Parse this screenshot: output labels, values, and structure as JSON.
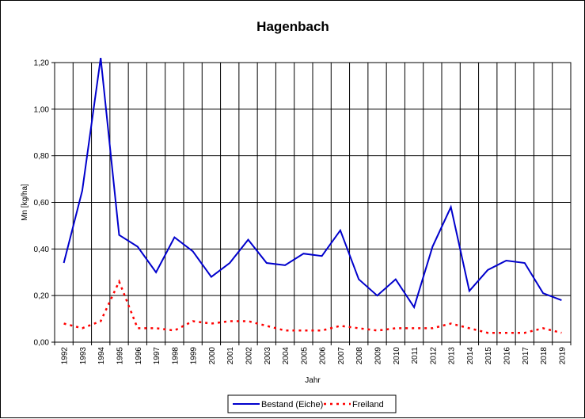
{
  "chart_data": {
    "type": "line",
    "title": "Hagenbach",
    "xlabel": "Jahr",
    "ylabel": "Mn [kg/ha]",
    "ylim": [
      0,
      1.2
    ],
    "yticks": [
      "0,00",
      "0,20",
      "0,40",
      "0,60",
      "0,80",
      "1,00",
      "1,20"
    ],
    "grid": true,
    "legend_position": "bottom-center",
    "categories": [
      "1992",
      "1993",
      "1994",
      "1995",
      "1996",
      "1997",
      "1998",
      "1999",
      "2000",
      "2001",
      "2002",
      "2003",
      "2004",
      "2005",
      "2006",
      "2007",
      "2008",
      "2009",
      "2010",
      "2011",
      "2012",
      "2013",
      "2014",
      "2015",
      "2016",
      "2017",
      "2018",
      "2019"
    ],
    "series": [
      {
        "name": "Bestand (Eiche)",
        "color": "#0000cc",
        "style": "solid",
        "values": [
          0.34,
          0.65,
          1.22,
          0.46,
          0.41,
          0.3,
          0.45,
          0.39,
          0.28,
          0.34,
          0.44,
          0.34,
          0.33,
          0.38,
          0.37,
          0.48,
          0.27,
          0.2,
          0.27,
          0.15,
          0.41,
          0.58,
          0.22,
          0.31,
          0.35,
          0.34,
          0.21,
          0.18
        ]
      },
      {
        "name": "Freiland",
        "color": "#ff0000",
        "style": "dotted",
        "values": [
          0.08,
          0.06,
          0.09,
          0.26,
          0.06,
          0.06,
          0.05,
          0.09,
          0.08,
          0.09,
          0.09,
          0.07,
          0.05,
          0.05,
          0.05,
          0.07,
          0.06,
          0.05,
          0.06,
          0.06,
          0.06,
          0.08,
          0.06,
          0.04,
          0.04,
          0.04,
          0.06,
          0.04
        ]
      }
    ]
  }
}
